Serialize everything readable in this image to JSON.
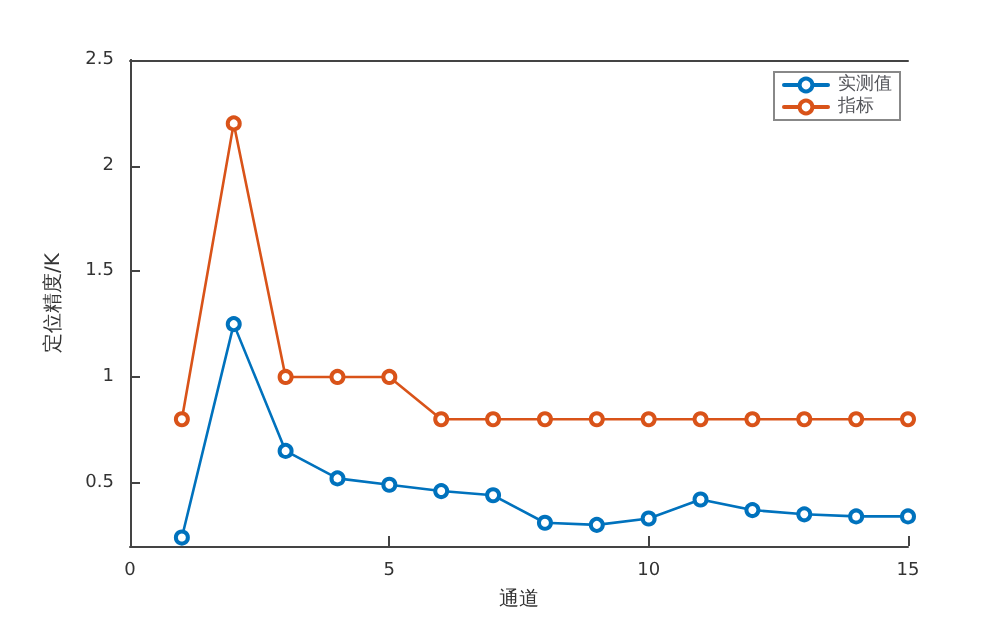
{
  "chart_data": {
    "type": "line",
    "xlabel": "通道",
    "ylabel": "定位精度/K",
    "x": [
      1,
      2,
      3,
      4,
      5,
      6,
      7,
      8,
      9,
      10,
      11,
      12,
      13,
      14,
      15
    ],
    "series": [
      {
        "name": "实测值",
        "color": "#0072bd",
        "values": [
          0.24,
          1.25,
          0.65,
          0.52,
          0.49,
          0.46,
          0.44,
          0.31,
          0.3,
          0.33,
          0.42,
          0.37,
          0.35,
          0.34,
          0.34
        ]
      },
      {
        "name": "指标",
        "color": "#d95319",
        "values": [
          0.8,
          2.2,
          1,
          1,
          1,
          0.8,
          0.8,
          0.8,
          0.8,
          0.8,
          0.8,
          0.8,
          0.8,
          0.8,
          0.8
        ]
      }
    ],
    "xlim": [
      0,
      15
    ],
    "xticks": [
      0,
      5,
      10,
      15
    ],
    "ylim": [
      0.2,
      2.5
    ],
    "yticks": [
      0.5,
      1,
      1.5,
      2,
      2.5
    ],
    "grid": false,
    "legend": "top right",
    "marker": "circle",
    "line_style": "solid"
  }
}
